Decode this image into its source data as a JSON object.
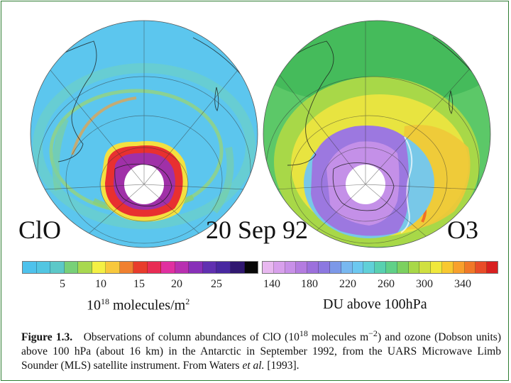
{
  "figure": {
    "date_label": "20 Sep 92",
    "clo_label": "ClO",
    "o3_label": "O3"
  },
  "colorbars": {
    "clo": {
      "colors": [
        "#4ec2ec",
        "#52c6e2",
        "#5cc8c8",
        "#78d078",
        "#a8d850",
        "#f4f044",
        "#f8c83c",
        "#f08030",
        "#e83c2c",
        "#e82c54",
        "#e030a0",
        "#b830b0",
        "#8830b8",
        "#6030b0",
        "#4828a0",
        "#301870",
        "#080808"
      ],
      "ticks": [
        "5",
        "10",
        "15",
        "20",
        "25"
      ],
      "unit_base": "10",
      "unit_exp": "18",
      "unit_rest": "molecules/m",
      "unit_exp2": "2"
    },
    "o3": {
      "colors": [
        "#e8b8f0",
        "#d8a0ec",
        "#c890e8",
        "#b47ce0",
        "#9c70dc",
        "#8c78e0",
        "#7c98e8",
        "#78b8f0",
        "#6cc8f0",
        "#60d0d8",
        "#58d0b0",
        "#60d088",
        "#7cd060",
        "#a8d848",
        "#d0e040",
        "#f0e83c",
        "#f8c830",
        "#f8a02c",
        "#f07828",
        "#e84c28",
        "#d82020"
      ],
      "ticks": [
        "140",
        "180",
        "220",
        "260",
        "300",
        "340"
      ],
      "unit": "DU above 100hPa"
    }
  },
  "caption": {
    "figure_number": "Figure 1.3.",
    "text_part1": "Observations of column abundances of ClO (10",
    "exp1": "18",
    "text_part2": " molecules m",
    "exp2": "−2",
    "text_part3": ") and ozone (Dobson units) above 100 hPa (about 16 km) in the Antarctic in September 1992, from the UARS Microwave Limb Sounder (MLS) satellite instrument.  From Waters ",
    "et_al": "et al.",
    "text_part4": " [1993]."
  }
}
